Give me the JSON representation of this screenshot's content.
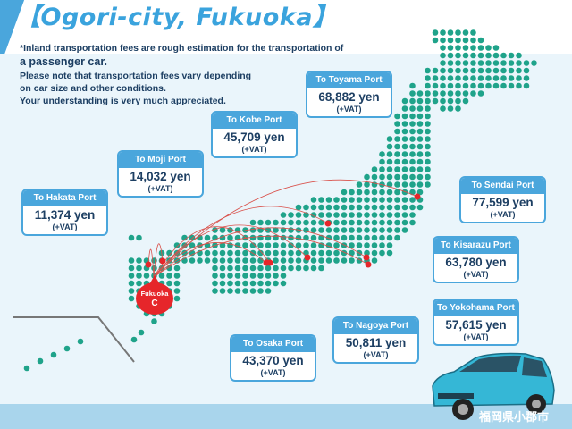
{
  "header": {
    "title": "【Ogori-city, Fukuoka】",
    "note_line1": "*Inland transportation fees are rough estimation for the transportation of",
    "note_line2": "a passenger car.",
    "note_line3": "Please note that transportation fees vary depending",
    "note_line4": "on car size and other conditions.",
    "note_line5": "Your understanding is very much appreciated."
  },
  "origin": {
    "label": "Fukuoka",
    "marker": "C"
  },
  "ports": [
    {
      "name": "To Hakata Port",
      "fee": "11,374 yen",
      "tax": "(+VAT)"
    },
    {
      "name": "To Moji Port",
      "fee": "14,032 yen",
      "tax": "(+VAT)"
    },
    {
      "name": "To Kobe Port",
      "fee": "45,709  yen",
      "tax": "(+VAT)"
    },
    {
      "name": "To Toyama Port",
      "fee": "68,882 yen",
      "tax": "(+VAT)"
    },
    {
      "name": "To Sendai Port",
      "fee": "77,599 yen",
      "tax": "(+VAT)"
    },
    {
      "name": "To Kisarazu Port",
      "fee": "63,780 yen",
      "tax": "(+VAT)"
    },
    {
      "name": "To Yokohama Port",
      "fee": "57,615 yen",
      "tax": "(+VAT)"
    },
    {
      "name": "To Nagoya Port",
      "fee": "50,811 yen",
      "tax": "(+VAT)"
    },
    {
      "name": "To Osaka Port",
      "fee": "43,370 yen",
      "tax": "(+VAT)"
    }
  ],
  "watermark": "福岡県小郡市",
  "colors": {
    "accent": "#4aa6dc",
    "text": "#1d3f63",
    "map_dot": "#1fa38a",
    "port_dot": "#e6262a"
  }
}
